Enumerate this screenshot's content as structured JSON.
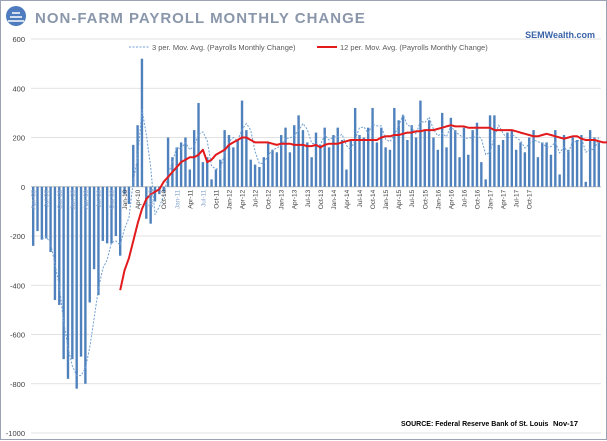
{
  "header": {
    "title": "NON-FARM PAYROLL MONTHLY CHANGE",
    "brand": "SEMWealth.com"
  },
  "footer": {
    "source": "SOURCE:  Federal Reserve Bank of St. Louis",
    "date": "Nov-17"
  },
  "colors": {
    "title": "#8a97ab",
    "brand": "#3a63a8",
    "bars": "#4f81bd",
    "ma3": "#6f9fd4",
    "ma12": "#e31a1c",
    "grid": "#d9d9d9",
    "logo": "#4e7cbf"
  },
  "icons": {
    "logo": "sun-logo-icon"
  },
  "chart_data": {
    "type": "bar",
    "title": "NON-FARM PAYROLL MONTHLY CHANGE",
    "ylim": [
      -1000,
      600
    ],
    "y_ticks": [
      600,
      400,
      200,
      0,
      -200,
      -400,
      -600,
      -800,
      -1000
    ],
    "grid": "horizontal",
    "legend_position": "top",
    "x_start": "2008-04",
    "x_tick_labels": [
      "Apr-08",
      "Jul-08",
      "Oct-08",
      "Jan-09",
      "Apr-09",
      "Jul-09",
      "Oct-09",
      "Jan-10",
      "Apr-10",
      "Jul-10",
      "Oct-10",
      "Jan-11",
      "Apr-11",
      "Jul-11",
      "Oct-11",
      "Jan-12",
      "Apr-12",
      "Jul-12",
      "Oct-12",
      "Jan-13",
      "Apr-13",
      "Jul-13",
      "Oct-13",
      "Jan-14",
      "Apr-14",
      "Jul-14",
      "Oct-14",
      "Jan-15",
      "Apr-15",
      "Jul-15",
      "Oct-15",
      "Jan-16",
      "Apr-16",
      "Jul-16",
      "Oct-16",
      "Jan-17",
      "Apr-17",
      "Jul-17",
      "Oct-17"
    ],
    "x_tick_label_visible": [
      "Jan-10",
      "Apr-10",
      "Oct-10",
      "Apr-11",
      "Oct-11",
      "Jan-12",
      "Apr-12",
      "Jul-12",
      "Oct-12",
      "Jan-13",
      "Apr-13",
      "Jul-13",
      "Oct-13",
      "Jan-14",
      "Apr-14",
      "Jul-14",
      "Oct-14",
      "Jan-15",
      "Apr-15",
      "Jul-15",
      "Oct-15",
      "Jan-16",
      "Apr-16",
      "Jul-16",
      "Oct-16",
      "Jan-17",
      "Apr-17",
      "Jul-17",
      "Oct-17"
    ],
    "series": [
      {
        "name": "Payrolls Monthly Change",
        "type": "bar",
        "values": [
          -240,
          -180,
          -215,
          -210,
          -265,
          -460,
          -480,
          -700,
          -780,
          -700,
          -820,
          -690,
          -800,
          -470,
          -335,
          -440,
          -220,
          -230,
          -230,
          -200,
          -280,
          -30,
          -70,
          170,
          250,
          520,
          -130,
          -150,
          -60,
          -30,
          -20,
          200,
          120,
          160,
          180,
          200,
          70,
          230,
          340,
          100,
          120,
          30,
          70,
          110,
          230,
          210,
          160,
          190,
          350,
          230,
          110,
          90,
          80,
          120,
          180,
          150,
          140,
          210,
          240,
          140,
          250,
          290,
          230,
          180,
          120,
          220,
          170,
          240,
          160,
          210,
          240,
          190,
          70,
          190,
          320,
          210,
          200,
          240,
          320,
          180,
          240,
          160,
          150,
          320,
          270,
          290,
          190,
          250,
          200,
          350,
          230,
          270,
          200,
          150,
          300,
          160,
          280,
          230,
          120,
          240,
          130,
          230,
          260,
          100,
          30,
          290,
          290,
          170,
          190,
          220,
          230,
          150,
          180,
          140,
          200,
          230,
          120,
          180,
          180,
          130,
          230,
          50,
          210,
          150,
          200,
          190,
          210,
          20,
          230,
          200,
          180
        ]
      },
      {
        "name": "3 per. Mov. Avg. (Payrolls Monthly Change)",
        "type": "line",
        "start_index": 2,
        "values": [
          -212,
          -203,
          -230,
          -312,
          -402,
          -547,
          -653,
          -727,
          -767,
          -767,
          -737,
          -653,
          -535,
          -415,
          -332,
          -297,
          -227,
          -220,
          -237,
          -170,
          -127,
          23,
          117,
          313,
          213,
          80,
          -113,
          -80,
          -37,
          50,
          100,
          160,
          153,
          180,
          150,
          167,
          213,
          223,
          187,
          83,
          73,
          70,
          137,
          183,
          200,
          187,
          233,
          257,
          230,
          143,
          93,
          97,
          127,
          150,
          157,
          167,
          197,
          197,
          210,
          227,
          257,
          233,
          177,
          173,
          170,
          210,
          190,
          203,
          203,
          213,
          167,
          150,
          193,
          240,
          243,
          217,
          253,
          247,
          247,
          193,
          183,
          210,
          247,
          293,
          250,
          243,
          213,
          267,
          260,
          283,
          233,
          207,
          217,
          203,
          247,
          223,
          210,
          197,
          197,
          200,
          207,
          197,
          130,
          140,
          203,
          250,
          217,
          193,
          213,
          200,
          187,
          157,
          173,
          190,
          183,
          177,
          160,
          163,
          180,
          137,
          163,
          137,
          187,
          180,
          200,
          140,
          153,
          150,
          203
        ]
      },
      {
        "name": "12 per. Mov. Avg. (Payrolls Monthly Change)",
        "type": "line",
        "start_index": 20,
        "values": [
          -420,
          -340,
          -290,
          -220,
          -150,
          -90,
          -50,
          -30,
          -20,
          -10,
          20,
          40,
          60,
          80,
          100,
          110,
          120,
          120,
          130,
          150,
          100,
          110,
          130,
          140,
          150,
          170,
          180,
          190,
          200,
          200,
          190,
          180,
          180,
          180,
          180,
          175,
          170,
          175,
          175,
          175,
          170,
          170,
          170,
          165,
          165,
          170,
          160,
          170,
          175,
          175,
          175,
          180,
          185,
          190,
          190,
          190,
          190,
          190,
          190,
          190,
          200,
          205,
          205,
          210,
          210,
          215,
          220,
          220,
          225,
          225,
          230,
          230,
          230,
          235,
          240,
          245,
          250,
          245,
          245,
          245,
          240,
          240,
          240,
          240,
          240,
          240,
          230,
          230,
          230,
          230,
          230,
          225,
          220,
          215,
          210,
          205,
          205,
          210,
          215,
          210,
          205,
          200,
          195,
          200,
          205,
          205,
          195,
          190,
          190,
          190,
          185,
          180,
          180,
          180,
          185,
          185,
          180,
          175,
          180,
          175,
          170,
          175,
          175,
          160,
          160,
          165,
          170,
          165,
          175
        ]
      }
    ]
  }
}
